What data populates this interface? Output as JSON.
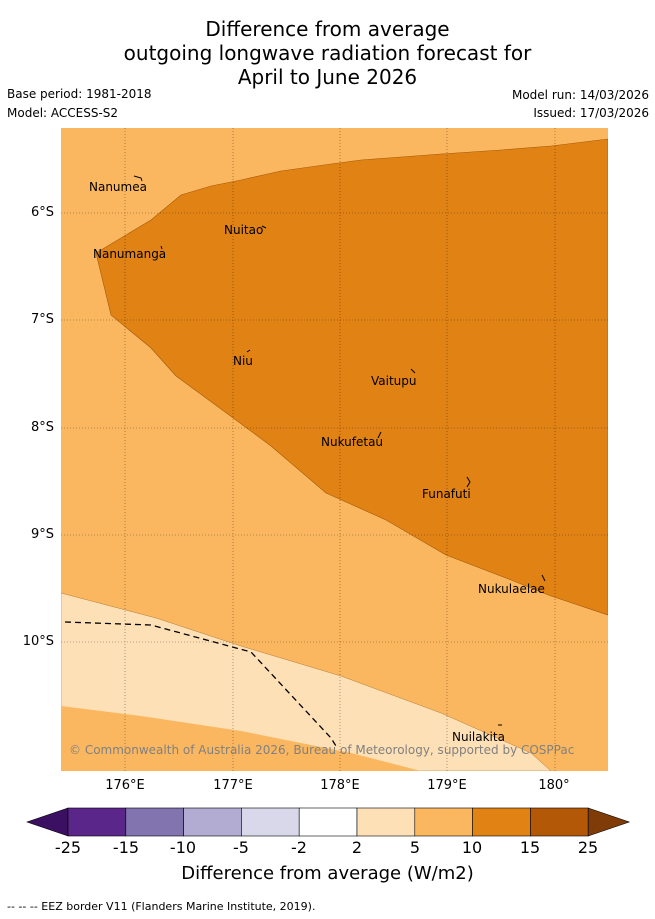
{
  "title": {
    "line1": "Difference from average",
    "line2": "outgoing longwave radiation forecast for",
    "line3": "April to June 2026"
  },
  "meta": {
    "base_period": "Base period: 1981-2018",
    "model": "Model: ACCESS-S2",
    "model_run": "Model run: 14/03/2026",
    "issued": "Issued: 17/03/2026"
  },
  "axes": {
    "lat_labels": [
      "6°S",
      "7°S",
      "8°S",
      "9°S",
      "10°S"
    ],
    "lon_labels": [
      "176°E",
      "177°E",
      "178°E",
      "179°E",
      "180°"
    ]
  },
  "places": [
    "Nanumea",
    "Nuitao",
    "Nanumanga",
    "Niu",
    "Vaitupu",
    "Nukufetau",
    "Funafuti",
    "Nukulaelae",
    "Nuilakita"
  ],
  "copyright": "© Commonwealth of Australia 2026, Bureau of Meteorology, supported by COSPPac",
  "colorbar": {
    "ticks": [
      "-25",
      "-15",
      "-10",
      "-5",
      "-2",
      "2",
      "5",
      "10",
      "15",
      "25"
    ],
    "colors": [
      "#3b1063",
      "#5a2689",
      "#8274af",
      "#b2abd2",
      "#d8d8ea",
      "#ffffff",
      "#fee0b6",
      "#fbb75f",
      "#e08214",
      "#b35806",
      "#7f3b08"
    ],
    "label": "Difference from average (W/m2)"
  },
  "footer": "-- --  -- EEZ border V11 (Flanders Marine Institute, 2019)."
}
